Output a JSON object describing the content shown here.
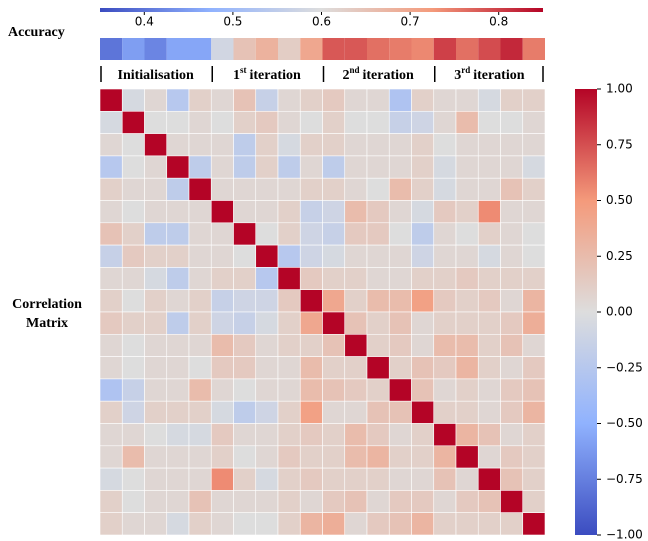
{
  "chart_data": [
    {
      "type": "heatmap-strip",
      "title": "Accuracy",
      "colormap": [
        "#3b4cc0",
        "#90b2fe",
        "#dddddd",
        "#f49a7b",
        "#b40426"
      ],
      "xlim": [
        0.35,
        0.85
      ],
      "xticks": [
        0.4,
        0.5,
        0.6,
        0.7,
        0.8
      ],
      "values": [
        0.4,
        0.45,
        0.42,
        0.46,
        0.46,
        0.58,
        0.65,
        0.68,
        0.63,
        0.7,
        0.78,
        0.78,
        0.76,
        0.75,
        0.74,
        0.8,
        0.76,
        0.79,
        0.82,
        0.75
      ],
      "groups": [
        {
          "label": "Initialisation"
        },
        {
          "label": "1",
          "sup": "st",
          "suffix": "iteration"
        },
        {
          "label": "2",
          "sup": "nd",
          "suffix": "iteration"
        },
        {
          "label": "3",
          "sup": "rd",
          "suffix": "iteration"
        }
      ]
    },
    {
      "type": "heatmap",
      "title": "Correlation Matrix",
      "colormap": [
        "#3b4cc0",
        "#90b2fe",
        "#dddddd",
        "#f49a7b",
        "#b40426"
      ],
      "ylim": [
        -1,
        1
      ],
      "yticks": [
        {
          "value": 1,
          "label": "1.00"
        },
        {
          "value": 0.75,
          "label": "0.75"
        },
        {
          "value": 0.5,
          "label": "0.50"
        },
        {
          "value": 0.25,
          "label": "0.25"
        },
        {
          "value": 0,
          "label": "0.00"
        },
        {
          "value": -0.25,
          "label": "−0.25"
        },
        {
          "value": -0.5,
          "label": "−0.50"
        },
        {
          "value": -0.75,
          "label": "−0.75"
        },
        {
          "value": -1,
          "label": "−1.00"
        }
      ],
      "values": [
        [
          1,
          -0.05,
          0.05,
          -0.25,
          0.1,
          0.05,
          0.2,
          -0.15,
          0.05,
          0.1,
          0.15,
          0.05,
          0.05,
          -0.3,
          0.1,
          0.05,
          0.05,
          -0.05,
          0.1,
          0.1
        ],
        [
          -0.05,
          1,
          0,
          0,
          0.05,
          0,
          0.1,
          0.15,
          0.05,
          0,
          0.1,
          0,
          0,
          -0.15,
          -0.1,
          0.05,
          0.25,
          0,
          0,
          0.05
        ],
        [
          0.05,
          0,
          1,
          0.05,
          0.05,
          0.05,
          -0.2,
          0.1,
          -0.05,
          0.1,
          0.1,
          0.05,
          0.05,
          0.05,
          0.1,
          0,
          0.05,
          0.05,
          0.05,
          0.05
        ],
        [
          -0.25,
          0,
          0.05,
          1,
          -0.2,
          0.05,
          -0.2,
          0.1,
          -0.2,
          0.05,
          -0.2,
          0.05,
          0.05,
          0.05,
          0.1,
          -0.05,
          0.05,
          0.05,
          0.05,
          -0.05
        ],
        [
          0.1,
          0.05,
          0.05,
          -0.2,
          1,
          0.05,
          0.05,
          0.05,
          0.05,
          0.1,
          0.1,
          0.05,
          0,
          0.25,
          0.1,
          -0.05,
          0.05,
          0.05,
          0.2,
          0.1
        ],
        [
          0.05,
          0,
          0.05,
          0.05,
          0.05,
          1,
          0.05,
          0.05,
          0.1,
          -0.15,
          -0.1,
          0.25,
          0.15,
          0.05,
          -0.05,
          0.15,
          0.1,
          0.55,
          0.05,
          0.05
        ],
        [
          0.2,
          0.1,
          -0.2,
          -0.2,
          0.05,
          0.05,
          1,
          0,
          0.1,
          -0.1,
          -0.15,
          0.15,
          0.15,
          0,
          -0.2,
          0.05,
          0,
          0.1,
          0.05,
          0
        ],
        [
          -0.15,
          0.15,
          0.1,
          0.1,
          0.05,
          0.05,
          0,
          1,
          -0.25,
          -0.1,
          -0.05,
          0.05,
          0.05,
          0.05,
          -0.1,
          0.05,
          0.05,
          -0.05,
          0.05,
          0
        ],
        [
          0.05,
          0.05,
          -0.05,
          -0.2,
          0.05,
          0.1,
          0.1,
          -0.25,
          1,
          0.15,
          0.1,
          0.1,
          0.05,
          0.05,
          0.1,
          0.1,
          0.15,
          0.1,
          0.1,
          0.1
        ],
        [
          0.1,
          0,
          0.1,
          0.05,
          0.1,
          -0.15,
          -0.1,
          -0.1,
          0.15,
          1,
          0.4,
          0.1,
          0.25,
          0.25,
          0.45,
          0.15,
          0.1,
          0.15,
          0.05,
          0.3
        ],
        [
          0.15,
          0.1,
          0.1,
          -0.2,
          0.1,
          -0.1,
          -0.15,
          -0.05,
          0.1,
          0.4,
          1,
          0.2,
          0.1,
          0.2,
          0.05,
          0.1,
          0.1,
          0.1,
          0.15,
          0.35
        ],
        [
          0.05,
          0,
          0.05,
          0.05,
          0.05,
          0.25,
          0.15,
          0.05,
          0.1,
          0.1,
          0.2,
          1,
          0.1,
          0.15,
          0.05,
          0.25,
          0.25,
          0.1,
          0.2,
          0.05
        ],
        [
          0.05,
          0,
          0.05,
          0.05,
          0,
          0.15,
          0.15,
          0.05,
          0.05,
          0.25,
          0.1,
          0.1,
          1,
          0.1,
          0.2,
          0.15,
          0.3,
          0.1,
          0.05,
          0.15
        ],
        [
          -0.3,
          -0.15,
          0.05,
          0.05,
          0.25,
          0.05,
          0,
          0.05,
          0.05,
          0.25,
          0.2,
          0.15,
          0.1,
          1,
          0.2,
          0.05,
          0.1,
          0.05,
          0.15,
          0.2
        ],
        [
          0.1,
          -0.1,
          0.1,
          0.1,
          0.1,
          -0.05,
          -0.2,
          -0.1,
          0.1,
          0.45,
          0.05,
          0.05,
          0.2,
          0.2,
          1,
          0.1,
          0.1,
          0.05,
          0.15,
          0.3
        ],
        [
          0.05,
          0.05,
          0,
          -0.05,
          -0.05,
          0.15,
          0.05,
          0.05,
          0.1,
          0.15,
          0.1,
          0.25,
          0.15,
          0.05,
          0.1,
          1,
          0.3,
          0.2,
          0.05,
          0.1
        ],
        [
          0.05,
          0.25,
          0.05,
          0.05,
          0.05,
          0.1,
          0,
          0.05,
          0.15,
          0.1,
          0.1,
          0.25,
          0.3,
          0.1,
          0.1,
          0.3,
          1,
          0.05,
          0.15,
          0.1
        ],
        [
          -0.05,
          0,
          0.05,
          0.05,
          0.05,
          0.55,
          0.1,
          -0.05,
          0.1,
          0.15,
          0.1,
          0.1,
          0.1,
          0.05,
          0.05,
          0.2,
          0.05,
          1,
          0.2,
          0.1
        ],
        [
          0.1,
          0,
          0.05,
          0.05,
          0.2,
          0.05,
          0.05,
          0.05,
          0.1,
          0.05,
          0.15,
          0.2,
          0.05,
          0.15,
          0.15,
          0.05,
          0.15,
          0.2,
          1,
          0.1
        ],
        [
          0.1,
          0.05,
          0.05,
          -0.05,
          0.1,
          0.05,
          0,
          0,
          0.1,
          0.3,
          0.35,
          0.05,
          0.15,
          0.2,
          0.3,
          0.1,
          0.1,
          0.1,
          0.1,
          1
        ]
      ]
    }
  ]
}
